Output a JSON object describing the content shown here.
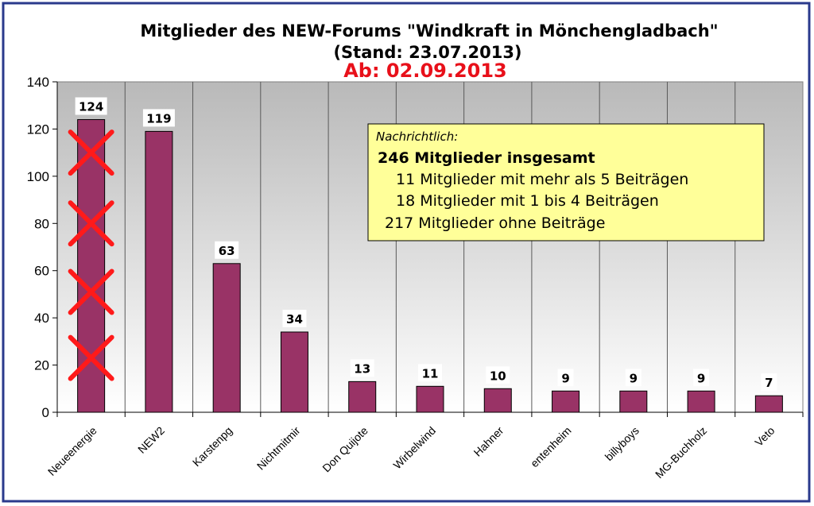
{
  "chart_data": {
    "type": "bar",
    "title": "Mitglieder des NEW-Forums \"Windkraft in Mönchengladbach\"",
    "subtitle": "(Stand: 23.07.2013)",
    "subtitle2": "Ab: 02.09.2013",
    "xlabel": "",
    "ylabel": "",
    "ylim": [
      0,
      140
    ],
    "yticks": [
      "0",
      "20",
      "40",
      "60",
      "80",
      "100",
      "120",
      "140"
    ],
    "grid": "vertical",
    "categories": [
      "Neueenergie",
      "NEW2",
      "Karstenpg",
      "Nichtmitmir",
      "Don Quijote",
      "Wirbelwind",
      "Hahner",
      "entenheim",
      "billyboys",
      "MG-Buchholz",
      "Veto"
    ],
    "values": [
      124,
      119,
      63,
      34,
      13,
      11,
      10,
      9,
      9,
      9,
      7
    ],
    "data_labels": [
      "124",
      "119",
      "63",
      "34",
      "13",
      "11",
      "10",
      "9",
      "9",
      "9",
      "7"
    ],
    "bar_color": "#993366",
    "cross_color": "#ff1a1a",
    "crossed_category": "Neueenergie",
    "crosses_at_values": [
      110,
      80,
      51,
      23
    ],
    "annotation": {
      "header": "Nachrichtlich:",
      "total": "246 Mitglieder insgesamt",
      "lines": [
        "11 Mitglieder mit mehr als 5 Beiträgen",
        "18 Mitglieder mit 1 bis 4 Beiträgen",
        "217 Mitglieder ohne Beiträge"
      ]
    }
  }
}
